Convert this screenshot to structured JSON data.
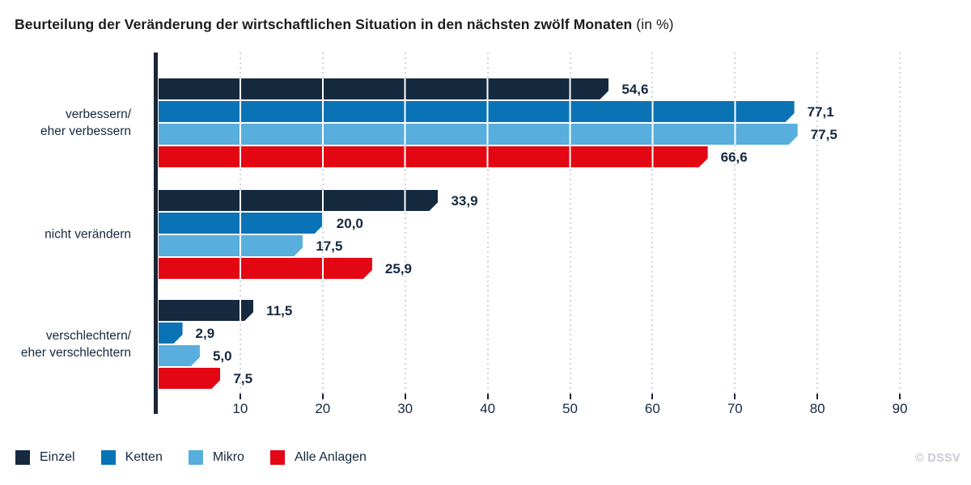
{
  "title": {
    "main": "Beurteilung der Veränderung der wirtschaftlichen Situation in den nächsten zwölf Monaten",
    "suffix": " (in %)"
  },
  "chart_data": {
    "type": "bar",
    "orientation": "horizontal",
    "unit": "%",
    "title": "Beurteilung der Veränderung der wirtschaftlichen Situation in den nächsten zwölf Monaten (in %)",
    "categories": [
      {
        "label": "verbessern/ eher verbessern",
        "lines": [
          "verbessern/",
          "eher verbessern"
        ]
      },
      {
        "label": "nicht verändern",
        "lines": [
          "nicht verändern"
        ]
      },
      {
        "label": "verschlechtern/ eher verschlechtern",
        "lines": [
          "verschlechtern/",
          "eher verschlechtern"
        ]
      }
    ],
    "series": [
      {
        "name": "Einzel",
        "color": "#15293f",
        "values": [
          54.6,
          33.9,
          11.5
        ],
        "labels": [
          "54,6",
          "33,9",
          "11,5"
        ]
      },
      {
        "name": "Ketten",
        "color": "#0a73b5",
        "values": [
          77.1,
          20.0,
          2.9
        ],
        "labels": [
          "77,1",
          "20,0",
          "2,9"
        ]
      },
      {
        "name": "Mikro",
        "color": "#58aedd",
        "values": [
          77.5,
          17.5,
          5.0
        ],
        "labels": [
          "77,5",
          "17,5",
          "5,0"
        ]
      },
      {
        "name": "Alle Anlagen",
        "color": "#e30613",
        "values": [
          66.6,
          25.9,
          7.5
        ],
        "labels": [
          "66,6",
          "25,9",
          "7,5"
        ]
      }
    ],
    "xticks": [
      10,
      20,
      30,
      40,
      50,
      60,
      70,
      80,
      90
    ],
    "xlim": [
      0,
      98
    ],
    "grid": "vertical-dotted",
    "legend_position": "bottom-left"
  },
  "legend": {
    "items": [
      "Einzel",
      "Ketten",
      "Mikro",
      "Alle Anlagen"
    ]
  },
  "footer": {
    "credit": "© DSSV"
  },
  "colors": {
    "axis": "#1a2433",
    "value_label": "#15293f",
    "tick_label": "#15293f",
    "gridline_dots": "#ced3da",
    "gridline_on_bars": "#ffffff",
    "title": "#1d1d1b",
    "credit": "#c9c9d3"
  }
}
